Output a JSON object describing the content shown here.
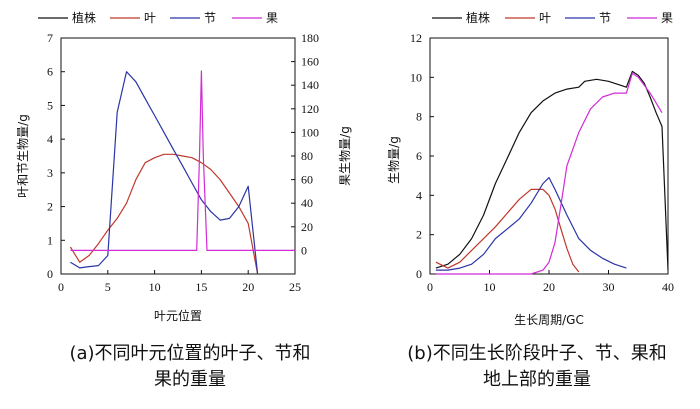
{
  "colors": {
    "plant": "#111111",
    "leaf": "#c0392b",
    "node": "#2a35a8",
    "fruit": "#d12bd6"
  },
  "legend": [
    "植株",
    "叶",
    "节",
    "果"
  ],
  "captions": {
    "a_line1": "(a)不同叶元位置的叶子、节和",
    "a_line2": "果的重量",
    "b_line1": "(b)不同生长阶段叶子、节、果和",
    "b_line2": "地上部的重量"
  },
  "chart_data": [
    {
      "type": "line",
      "xlabel": "叶元位置",
      "ylabel": "叶和节生物量/g",
      "y2label": "果生物量/g",
      "xlim": [
        0,
        25
      ],
      "ylim": [
        0,
        7
      ],
      "y2lim": [
        -20,
        180
      ],
      "xticks": [
        0,
        5,
        10,
        15,
        20,
        25
      ],
      "yticks": [
        0,
        1,
        2,
        3,
        4,
        5,
        6,
        7
      ],
      "y2ticks": [
        0,
        20,
        40,
        60,
        80,
        100,
        120,
        140,
        160,
        180
      ],
      "grid": false,
      "legend_position": "top",
      "series": [
        {
          "name": "叶",
          "axis": "left",
          "color_key": "leaf",
          "x": [
            1,
            2,
            3,
            4,
            5,
            6,
            7,
            8,
            9,
            10,
            11,
            12,
            13,
            14,
            15,
            16,
            17,
            18,
            19,
            20,
            21
          ],
          "y": [
            0.8,
            0.35,
            0.55,
            0.9,
            1.3,
            1.65,
            2.1,
            2.8,
            3.3,
            3.45,
            3.55,
            3.55,
            3.5,
            3.45,
            3.3,
            3.1,
            2.8,
            2.4,
            2.0,
            1.5,
            0.0
          ]
        },
        {
          "name": "节",
          "axis": "left",
          "color_key": "node",
          "x": [
            1,
            2,
            3,
            4,
            5,
            6,
            7,
            8,
            9,
            10,
            11,
            12,
            13,
            14,
            15,
            16,
            17,
            18,
            19,
            20,
            21
          ],
          "y": [
            0.35,
            0.18,
            0.22,
            0.25,
            0.55,
            4.8,
            6.0,
            5.7,
            5.2,
            4.7,
            4.2,
            3.7,
            3.2,
            2.7,
            2.2,
            1.85,
            1.6,
            1.65,
            2.0,
            2.6,
            0.0
          ]
        },
        {
          "name": "果",
          "axis": "right",
          "color_key": "fruit",
          "x": [
            1,
            14.5,
            14.8,
            15.0,
            15.2,
            15.6,
            25
          ],
          "y": [
            0,
            0,
            80,
            152,
            80,
            0,
            0
          ]
        }
      ]
    },
    {
      "type": "line",
      "xlabel": "生长周期/GC",
      "ylabel": "生物量/g",
      "xlim": [
        0,
        40
      ],
      "ylim": [
        0,
        12
      ],
      "xticks": [
        0,
        10,
        20,
        30,
        40
      ],
      "yticks": [
        0,
        2,
        4,
        6,
        8,
        10,
        12
      ],
      "grid": false,
      "legend_position": "top",
      "series": [
        {
          "name": "植株",
          "color_key": "plant",
          "x": [
            1,
            3,
            5,
            7,
            9,
            11,
            13,
            15,
            17,
            19,
            21,
            23,
            25,
            26,
            28,
            30,
            32,
            33,
            34,
            35,
            36,
            37,
            38,
            39,
            40
          ],
          "y": [
            0.3,
            0.5,
            1.0,
            1.8,
            3.0,
            4.6,
            5.9,
            7.2,
            8.2,
            8.8,
            9.2,
            9.4,
            9.5,
            9.8,
            9.9,
            9.8,
            9.6,
            9.5,
            10.3,
            10.1,
            9.7,
            9.0,
            8.2,
            7.5,
            0.2
          ]
        },
        {
          "name": "叶",
          "color_key": "leaf",
          "x": [
            1,
            3,
            5,
            7,
            9,
            11,
            13,
            15,
            17,
            19,
            20,
            21,
            22,
            23,
            24,
            25
          ],
          "y": [
            0.6,
            0.3,
            0.6,
            1.2,
            1.8,
            2.4,
            3.1,
            3.8,
            4.3,
            4.3,
            4.0,
            3.3,
            2.3,
            1.3,
            0.5,
            0.1
          ]
        },
        {
          "name": "节",
          "color_key": "node",
          "x": [
            1,
            3,
            5,
            7,
            9,
            11,
            13,
            15,
            17,
            19,
            20,
            21,
            23,
            25,
            27,
            29,
            31,
            33
          ],
          "y": [
            0.2,
            0.2,
            0.3,
            0.5,
            1.0,
            1.8,
            2.3,
            2.8,
            3.6,
            4.6,
            4.9,
            4.3,
            3.0,
            1.8,
            1.2,
            0.8,
            0.5,
            0.3
          ]
        },
        {
          "name": "果",
          "color_key": "fruit",
          "x": [
            1,
            17,
            19,
            20,
            21,
            22,
            23,
            25,
            27,
            29,
            31,
            33,
            34,
            35,
            36,
            37,
            38,
            39
          ],
          "y": [
            0,
            0,
            0.2,
            0.6,
            1.6,
            3.5,
            5.5,
            7.2,
            8.4,
            9.0,
            9.2,
            9.2,
            10.2,
            10.0,
            9.6,
            9.2,
            8.7,
            8.2
          ]
        }
      ]
    }
  ]
}
